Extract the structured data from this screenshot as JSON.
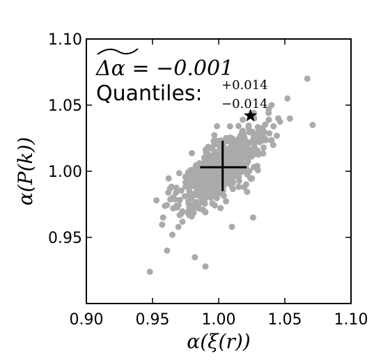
{
  "chart_data": {
    "type": "scatter",
    "xlabel": "α(ξ(r))",
    "ylabel": "α(P(k))",
    "xlim": [
      0.9,
      1.1
    ],
    "ylim": [
      0.9,
      1.1
    ],
    "x_ticks": [
      "0.90",
      "0.95",
      "1.00",
      "1.05",
      "1.10"
    ],
    "y_ticks": [
      "0.95",
      "1.00",
      "1.05",
      "1.10"
    ],
    "grid": false,
    "point_color": "#aaaaaa",
    "annotation": {
      "delta_text": "Δα = −0.001",
      "quantiles_label": "Quantiles:",
      "quantile_upper": "+0.014",
      "quantile_lower": "−0.014"
    },
    "cross": {
      "center": [
        1.003,
        1.003
      ],
      "x_range": [
        0.986,
        1.021
      ],
      "y_range": [
        0.985,
        1.023
      ]
    },
    "star": {
      "x": 1.024,
      "y": 1.042
    },
    "outliers": [
      [
        0.948,
        0.924
      ],
      [
        0.961,
        0.94
      ],
      [
        0.958,
        0.965
      ],
      [
        0.953,
        0.978
      ],
      [
        1.067,
        1.07
      ],
      [
        1.071,
        1.035
      ],
      [
        1.052,
        1.055
      ],
      [
        1.026,
        0.965
      ],
      [
        0.982,
        0.935
      ],
      [
        0.99,
        0.928
      ],
      [
        1.045,
        1.04
      ],
      [
        1.04,
        1.05
      ],
      [
        0.965,
        0.952
      ],
      [
        1.01,
        0.958
      ]
    ],
    "cloud": {
      "count": 620,
      "mean": [
        1.002,
        1.002
      ],
      "sd_x": 0.017,
      "sd_y": 0.017,
      "correlation": 0.72
    }
  }
}
